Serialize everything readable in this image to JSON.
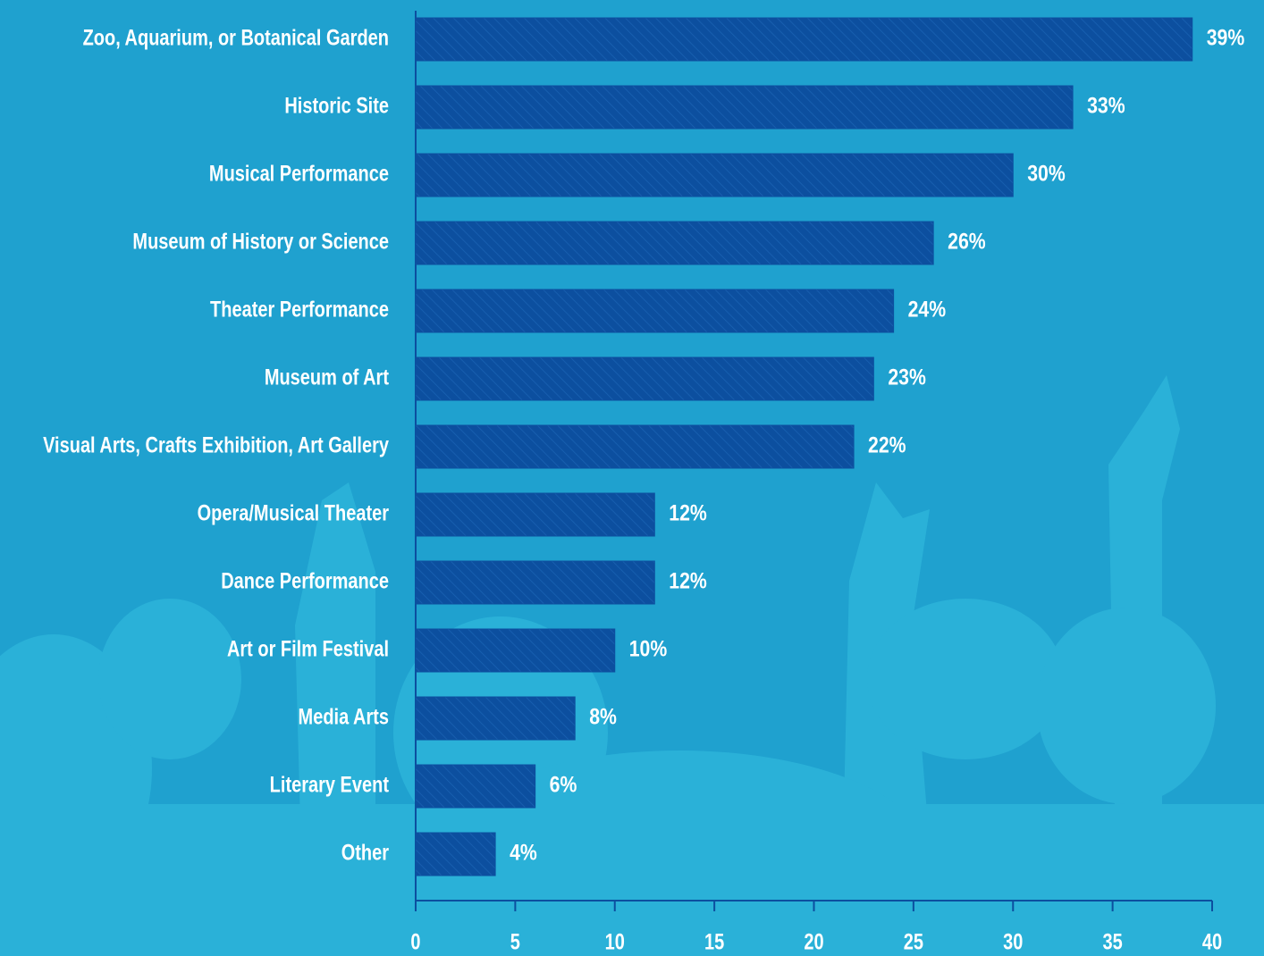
{
  "chart_data": {
    "type": "hbar",
    "categories": [
      "Zoo, Aquarium, or Botanical Garden",
      "Historic Site",
      "Musical Performance",
      "Museum of History or Science",
      "Theater Performance",
      "Museum of Art",
      "Visual Arts, Crafts Exhibition, Art Gallery",
      "Opera/Musical Theater",
      "Dance Performance",
      "Art or Film Festival",
      "Media Arts",
      "Literary Event",
      "Other"
    ],
    "values": [
      39,
      33,
      30,
      26,
      24,
      23,
      22,
      12,
      12,
      10,
      8,
      6,
      4
    ],
    "value_labels": [
      "39%",
      "33%",
      "30%",
      "26%",
      "24%",
      "23%",
      "22%",
      "12%",
      "12%",
      "10%",
      "8%",
      "6%",
      "4%"
    ],
    "color": "#0c4f9f",
    "xlim": [
      0,
      40
    ],
    "xticks": [
      0,
      5,
      10,
      15,
      20,
      25,
      30,
      35,
      40
    ]
  }
}
